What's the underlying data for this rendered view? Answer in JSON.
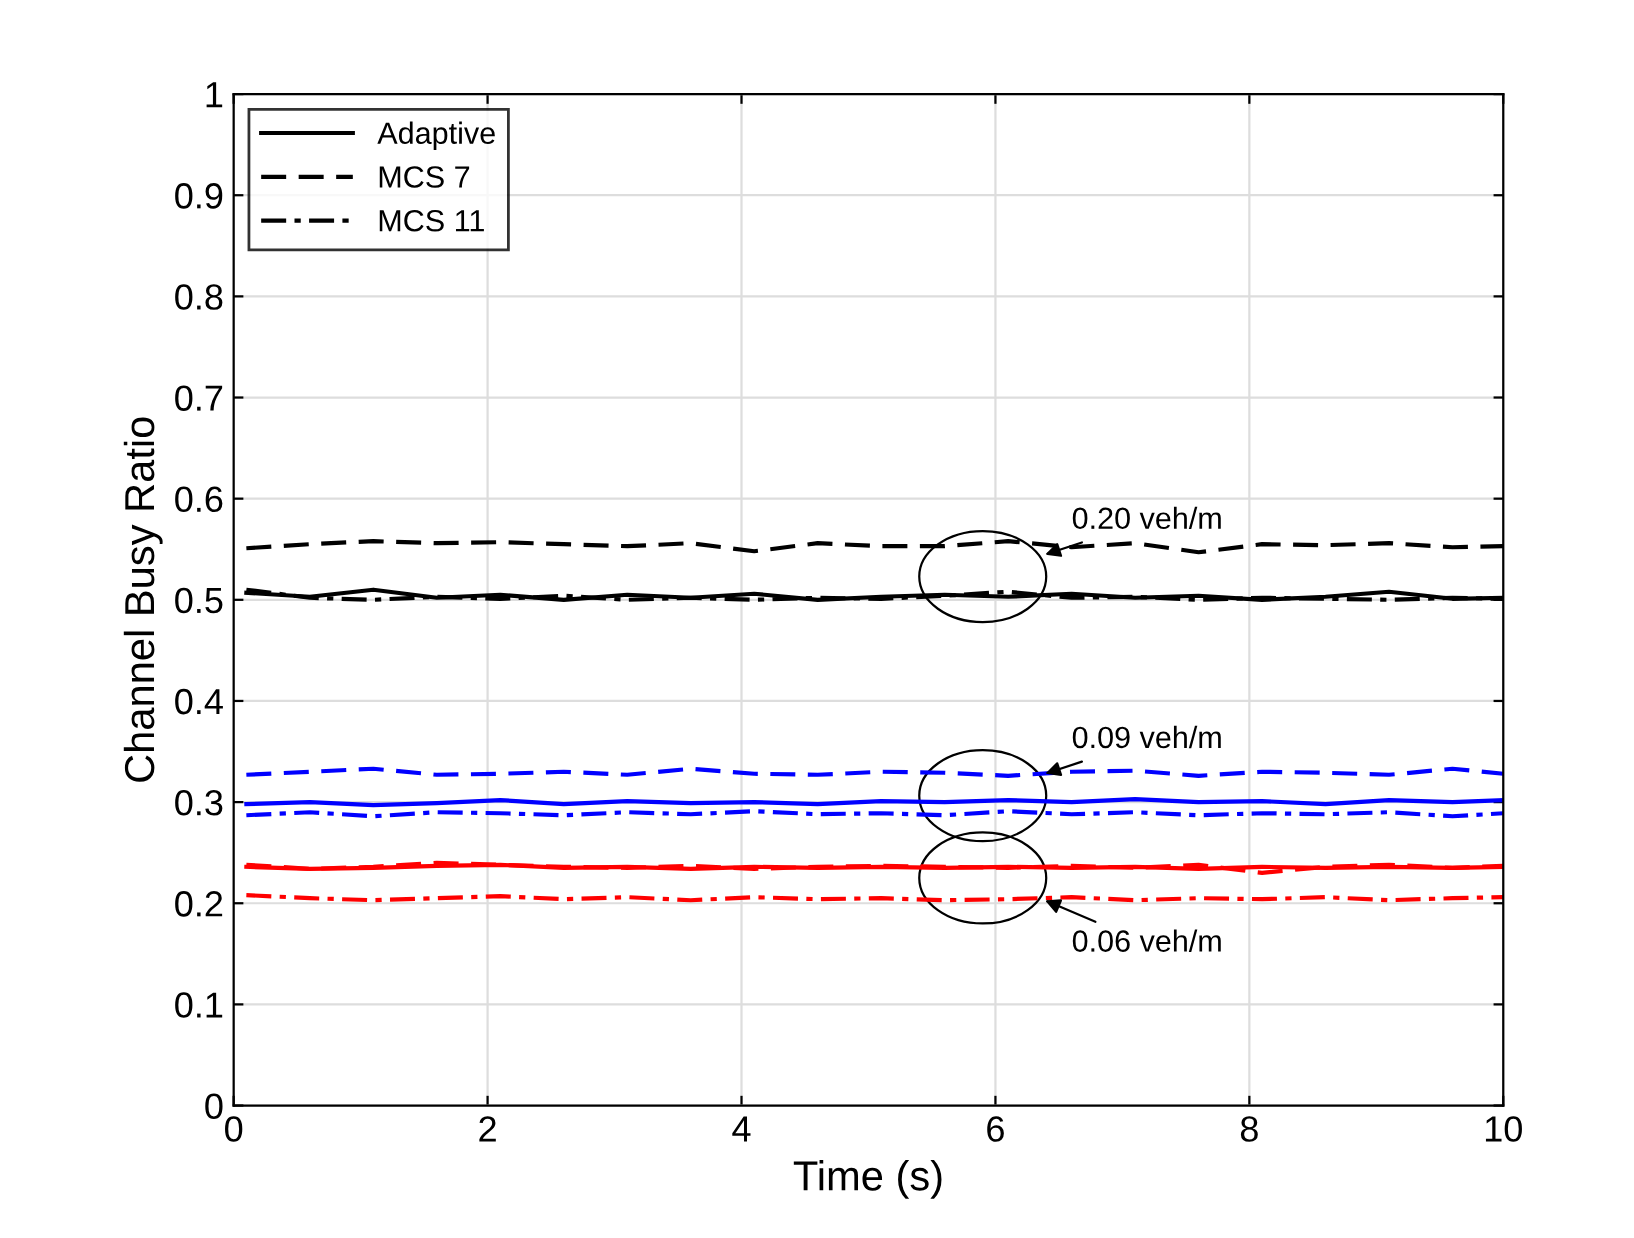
{
  "chart_data": {
    "type": "line",
    "xlabel": "Time (s)",
    "ylabel": "Channel Busy Ratio",
    "xlim": [
      0,
      10
    ],
    "ylim": [
      0,
      1
    ],
    "xticks": [
      0,
      2,
      4,
      6,
      8,
      10
    ],
    "yticks": [
      0,
      0.1,
      0.2,
      0.3,
      0.4,
      0.5,
      0.6,
      0.7,
      0.8,
      0.9,
      1
    ],
    "grid": true,
    "legend": "top left",
    "x": [
      0.1,
      0.6,
      1.1,
      1.6,
      2.1,
      2.6,
      3.1,
      3.6,
      4.1,
      4.6,
      5.1,
      5.6,
      6.1,
      6.6,
      7.1,
      7.6,
      8.1,
      8.6,
      9.1,
      9.6,
      10
    ],
    "series": [
      {
        "name": "Adaptive",
        "color": "#000000",
        "line_style": "solid",
        "values": [
          0.507,
          0.503,
          0.51,
          0.502,
          0.505,
          0.5,
          0.505,
          0.502,
          0.506,
          0.5,
          0.503,
          0.505,
          0.503,
          0.506,
          0.502,
          0.504,
          0.5,
          0.503,
          0.508,
          0.501,
          0.502
        ]
      },
      {
        "name": "MCS 7",
        "color": "#000000",
        "line_style": "dashed",
        "values": [
          0.551,
          0.555,
          0.558,
          0.556,
          0.557,
          0.555,
          0.553,
          0.556,
          0.548,
          0.556,
          0.553,
          0.553,
          0.558,
          0.552,
          0.556,
          0.547,
          0.555,
          0.554,
          0.556,
          0.552,
          0.553
        ]
      },
      {
        "name": "MCS 11",
        "color": "#000000",
        "line_style": "dotted_dash",
        "values": [
          0.51,
          0.502,
          0.5,
          0.503,
          0.501,
          0.504,
          0.5,
          0.502,
          0.5,
          0.502,
          0.501,
          0.504,
          0.508,
          0.502,
          0.503,
          0.5,
          0.502,
          0.501,
          0.5,
          0.502,
          0.501
        ]
      },
      {
        "color": "#0000ff",
        "line_style": "solid",
        "values": [
          0.298,
          0.3,
          0.297,
          0.299,
          0.302,
          0.298,
          0.301,
          0.299,
          0.3,
          0.298,
          0.301,
          0.3,
          0.302,
          0.3,
          0.303,
          0.3,
          0.301,
          0.298,
          0.302,
          0.3,
          0.302
        ]
      },
      {
        "color": "#0000ff",
        "line_style": "dashed",
        "values": [
          0.327,
          0.33,
          0.333,
          0.327,
          0.328,
          0.33,
          0.327,
          0.333,
          0.328,
          0.327,
          0.33,
          0.329,
          0.326,
          0.33,
          0.331,
          0.326,
          0.33,
          0.329,
          0.327,
          0.333,
          0.328
        ]
      },
      {
        "color": "#0000ff",
        "line_style": "dotted_dash",
        "values": [
          0.287,
          0.29,
          0.286,
          0.29,
          0.289,
          0.287,
          0.29,
          0.288,
          0.291,
          0.288,
          0.289,
          0.287,
          0.291,
          0.288,
          0.29,
          0.287,
          0.289,
          0.288,
          0.29,
          0.286,
          0.289
        ]
      },
      {
        "color": "#ff0000",
        "line_style": "solid",
        "values": [
          0.236,
          0.234,
          0.235,
          0.237,
          0.238,
          0.235,
          0.236,
          0.234,
          0.236,
          0.235,
          0.236,
          0.235,
          0.236,
          0.235,
          0.236,
          0.234,
          0.236,
          0.235,
          0.236,
          0.235,
          0.236
        ]
      },
      {
        "color": "#ff0000",
        "line_style": "dashed",
        "values": [
          0.238,
          0.234,
          0.236,
          0.24,
          0.238,
          0.236,
          0.235,
          0.237,
          0.234,
          0.236,
          0.237,
          0.236,
          0.235,
          0.237,
          0.235,
          0.238,
          0.23,
          0.236,
          0.238,
          0.235,
          0.237
        ]
      },
      {
        "color": "#ff0000",
        "line_style": "dotted_dash",
        "values": [
          0.208,
          0.205,
          0.203,
          0.205,
          0.207,
          0.204,
          0.206,
          0.203,
          0.206,
          0.204,
          0.205,
          0.203,
          0.204,
          0.206,
          0.203,
          0.205,
          0.204,
          0.206,
          0.203,
          0.205,
          0.206
        ]
      }
    ],
    "annotations": [
      "0.20 veh/m",
      "0.09 veh/m",
      "0.06 veh/m"
    ]
  }
}
